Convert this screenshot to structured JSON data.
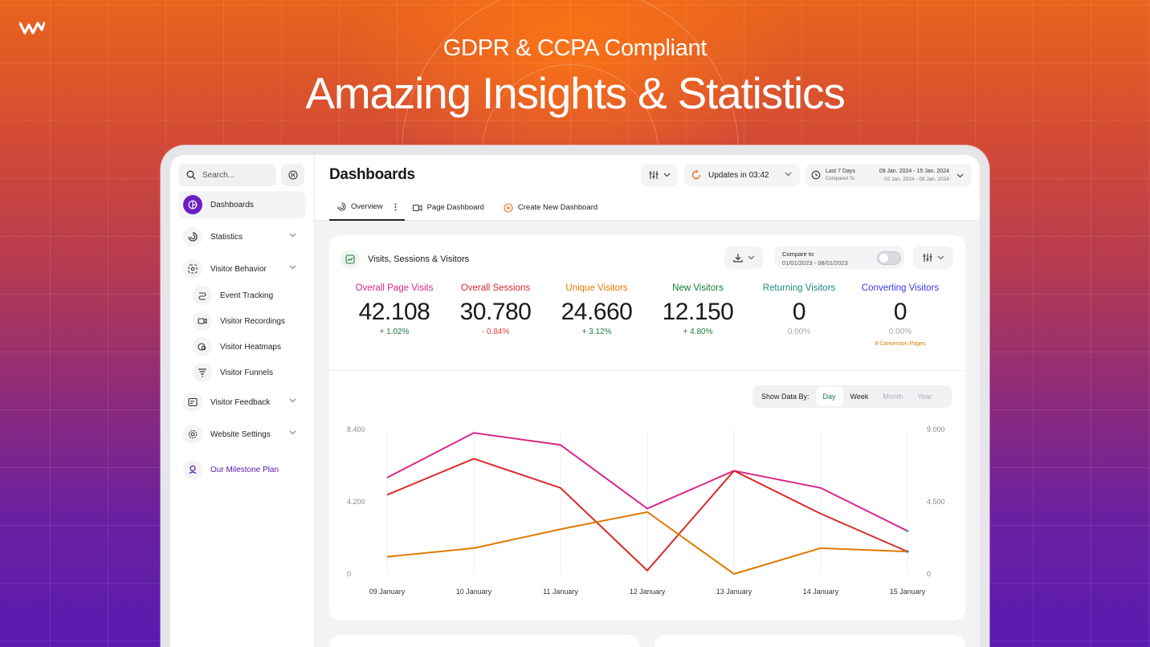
{
  "hero": {
    "subtitle": "GDPR & CCPA Compliant",
    "headline": "Amazing Insights & Statistics"
  },
  "sidebar": {
    "search_placeholder": "Search...",
    "items": [
      {
        "label": "Dashboards",
        "icon": "pie-icon",
        "active": true
      },
      {
        "label": "Statistics",
        "icon": "stats-icon"
      },
      {
        "label": "Visitor Behavior",
        "icon": "behavior-icon"
      },
      {
        "label": "Event Tracking",
        "icon": "tracking-icon",
        "sub": true
      },
      {
        "label": "Visitor Recordings",
        "icon": "camera-icon",
        "sub": true
      },
      {
        "label": "Visitor Heatmaps",
        "icon": "heatmap-icon",
        "sub": true
      },
      {
        "label": "Visitor Funnels",
        "icon": "funnel-icon",
        "sub": true
      },
      {
        "label": "Visitor Feedback",
        "icon": "feedback-icon"
      },
      {
        "label": "Website Settings",
        "icon": "gear-icon"
      },
      {
        "label": "Our Milestone Plan",
        "icon": "milestone-icon"
      }
    ]
  },
  "topbar": {
    "title": "Dashboards",
    "updates": "Updates in 03:42",
    "range_label": "Last 7 Days",
    "compared_label": "Compared To",
    "range_value": "09 Jan. 2024 - 15 Jan. 2024",
    "compared_value": "02 Jan. 2024 - 08 Jan. 2024",
    "tabs": [
      "Overview",
      "Page Dashboard",
      "Create New Dashboard"
    ]
  },
  "card": {
    "title": "Visits, Sessions & Visitors",
    "compare_label": "Compare to",
    "compare_value": "01/01/2023 - 08/01/2023",
    "show_data_label": "Show Data By:",
    "show_data_options": [
      "Day",
      "Week",
      "Month",
      "Year"
    ],
    "metrics": [
      {
        "label": "Overall Page Visits",
        "value": "42.108",
        "change": "+ 1.02%",
        "color": "#d9278a",
        "change_color": "#1f7a3f"
      },
      {
        "label": "Overall Sessions",
        "value": "30.780",
        "change": "- 0.84%",
        "color": "#d92b2b",
        "change_color": "#e23b3b"
      },
      {
        "label": "Unique Visitors",
        "value": "24.660",
        "change": "+ 3.12%",
        "color": "#e07b00",
        "change_color": "#1f7a3f"
      },
      {
        "label": "New Visitors",
        "value": "12.150",
        "change": "+ 4.80%",
        "color": "#137a34",
        "change_color": "#1f7a3f"
      },
      {
        "label": "Returning Visitors",
        "value": "0",
        "change": "0.00%",
        "color": "#1e8a78",
        "change_color": "#a8a8ae"
      },
      {
        "label": "Converting Visitors",
        "value": "0",
        "change": "0.00%",
        "color": "#3a3ae0",
        "change_color": "#a8a8ae",
        "note": "8 Conversion Pages"
      }
    ]
  },
  "chart_data": {
    "type": "line",
    "x": [
      "09 January",
      "10 January",
      "11 January",
      "12 January",
      "13 January",
      "14 January",
      "15 January"
    ],
    "y_left_ticks": [
      "8.400",
      "4.200",
      "0"
    ],
    "y_right_ticks": [
      "9.000",
      "4.500",
      "0"
    ],
    "ylim_left": [
      0,
      8400
    ],
    "series": [
      {
        "color": "#d9278a",
        "values": [
          5600,
          8200,
          7500,
          3800,
          6000,
          5000,
          2500
        ]
      },
      {
        "color": "#d92b2b",
        "values": [
          4600,
          6700,
          5000,
          200,
          6000,
          3500,
          1300
        ]
      },
      {
        "color": "#e07b00",
        "values": [
          1000,
          1500,
          2600,
          3600,
          0,
          1500,
          1300
        ]
      }
    ],
    "grid": true
  }
}
